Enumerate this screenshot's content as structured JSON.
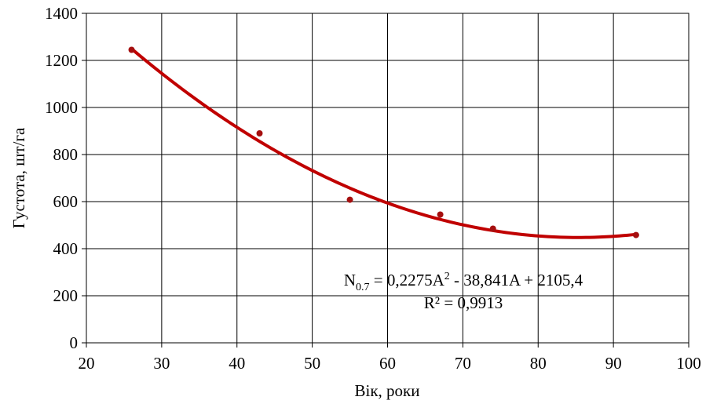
{
  "chart_data": {
    "type": "scatter",
    "xlabel": "Вік, роки",
    "ylabel": "Густота, шт/га",
    "xlim": [
      20,
      100
    ],
    "ylim": [
      0,
      1400
    ],
    "x_ticks": [
      "20",
      "30",
      "40",
      "50",
      "60",
      "70",
      "80",
      "90",
      "100"
    ],
    "y_ticks": [
      "0",
      "200",
      "400",
      "600",
      "800",
      "1000",
      "1200",
      "1400"
    ],
    "grid": true,
    "legend": "none",
    "series": [
      {
        "points": [
          {
            "x": 26,
            "y": 1245
          },
          {
            "x": 43,
            "y": 890
          },
          {
            "x": 55,
            "y": 608
          },
          {
            "x": 67,
            "y": 545
          },
          {
            "x": 74,
            "y": 485
          },
          {
            "x": 93,
            "y": 458
          }
        ],
        "color": "#a50f0f"
      }
    ],
    "trendline": {
      "type": "polynomial",
      "coefficients": {
        "a2": 0.2275,
        "a1": -38.841,
        "a0": 2105.4
      },
      "x_range": [
        26,
        93
      ],
      "color": "#c00000"
    },
    "annotation": {
      "equation": {
        "lhs": "N",
        "subscript": "0.7",
        "rhs_part1": " = 0,2275A",
        "superscript": "2",
        "rhs_part2": " - 38,841A + 2105,4"
      },
      "r_squared": "R² = 0,9913"
    }
  }
}
